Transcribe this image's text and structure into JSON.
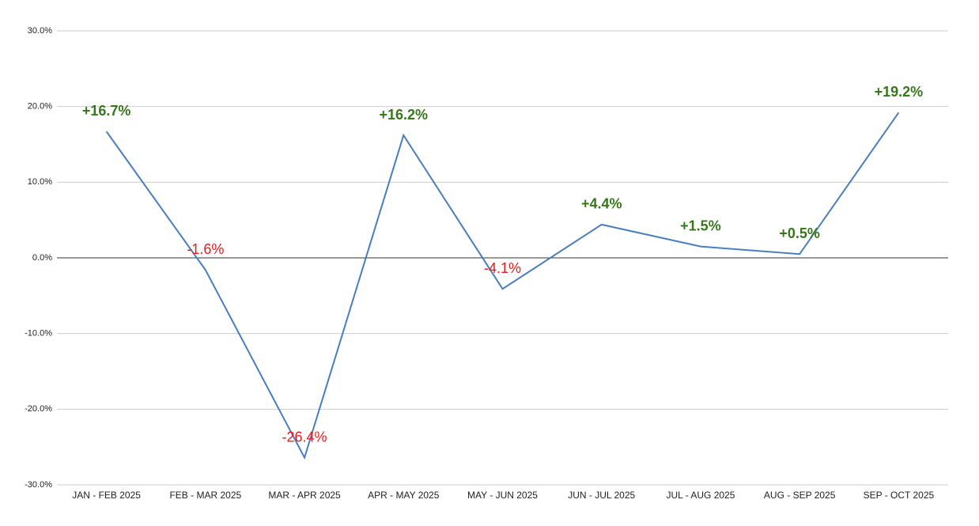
{
  "chart_data": {
    "type": "line",
    "categories": [
      "JAN - FEB 2025",
      "FEB - MAR 2025",
      "MAR - APR 2025",
      "APR - MAY 2025",
      "MAY - JUN 2025",
      "JUN - JUL 2025",
      "JUL - AUG 2025",
      "AUG - SEP 2025",
      "SEP - OCT 2025"
    ],
    "series": [
      {
        "color": "#4a7ebb",
        "values": [
          16.7,
          -1.6,
          -26.4,
          16.2,
          -4.1,
          4.4,
          1.5,
          0.5,
          19.2
        ],
        "value_labels": [
          "+16.7%",
          "-1.6%",
          "-26.4%",
          "+16.2%",
          "-4.1%",
          "+4.4%",
          "+1.5%",
          "+0.5%",
          "+19.2%"
        ]
      }
    ],
    "positive_label_color": "#38761d",
    "negative_label_color": "#e51c1c",
    "ylim": [
      -30,
      30
    ],
    "yticks": [
      {
        "value": -30,
        "label": "-30.0%"
      },
      {
        "value": -20,
        "label": "-20.0%"
      },
      {
        "value": -10,
        "label": "-10.0%"
      },
      {
        "value": 0,
        "label": "0.0%"
      },
      {
        "value": 10,
        "label": "10.0%"
      },
      {
        "value": 20,
        "label": "20.0%"
      },
      {
        "value": 30,
        "label": "30.0%"
      }
    ],
    "grid": true
  }
}
